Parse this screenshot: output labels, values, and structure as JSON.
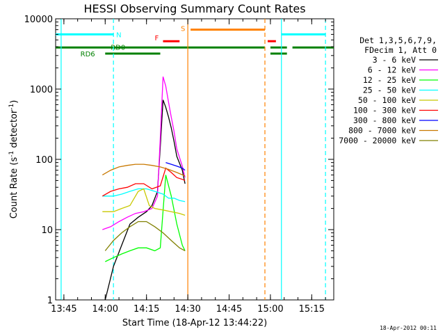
{
  "chart_data": {
    "type": "line",
    "title": "HESSI Observing Summary Count Rates",
    "xlabel": "Start Time (18-Apr-12 13:44:22)",
    "ylabel": "Count Rate (s",
    "ylabel_sup": "-1",
    "ylabel_mid": " detector",
    "ylabel_end": ")",
    "xlim": [
      "13:42",
      "15:23"
    ],
    "ylim": [
      1,
      10000
    ],
    "yscale": "log",
    "x_ticks": [
      "13:45",
      "14:00",
      "14:15",
      "14:30",
      "14:45",
      "15:00",
      "15:15"
    ],
    "y_ticks": [
      "1",
      "10",
      "100",
      "1000",
      "10000"
    ],
    "legend_header": [
      "Det 1,3,5,6,7,9,",
      "FDecim 1, Att 0"
    ],
    "legend_placement": "right",
    "timestamp": "18-Apr-2012 00:11",
    "series": [
      {
        "name": "3 - 6 keV",
        "color": "#000000",
        "x": [
          "14:00",
          "14:03",
          "14:06",
          "14:09",
          "14:12",
          "14:15",
          "14:17",
          "14:19",
          "14:20",
          "14:21",
          "14:22",
          "14:23",
          "14:24",
          "14:25",
          "14:26",
          "14:28",
          "14:29"
        ],
        "y": [
          1,
          3,
          6,
          12,
          15,
          18,
          22,
          35,
          150,
          700,
          550,
          400,
          280,
          180,
          110,
          70,
          45
        ]
      },
      {
        "name": "6 - 12 keV",
        "color": "#ff00ff",
        "x": [
          "13:59",
          "14:02",
          "14:05",
          "14:08",
          "14:11",
          "14:14",
          "14:17",
          "14:19",
          "14:20",
          "14:21",
          "14:22",
          "14:23",
          "14:24",
          "14:25",
          "14:26",
          "14:28",
          "14:29"
        ],
        "y": [
          10,
          11,
          13,
          15,
          17,
          18,
          20,
          30,
          200,
          1500,
          1100,
          650,
          400,
          250,
          140,
          80,
          55
        ]
      },
      {
        "name": "12 - 25 keV",
        "color": "#00ff00",
        "x": [
          "14:00",
          "14:03",
          "14:06",
          "14:09",
          "14:12",
          "14:15",
          "14:18",
          "14:20",
          "14:22",
          "14:24",
          "14:26",
          "14:28",
          "14:29"
        ],
        "y": [
          3.5,
          4,
          4.5,
          5,
          5.5,
          5.5,
          5,
          5.5,
          60,
          30,
          12,
          6,
          5
        ]
      },
      {
        "name": "25 - 50 keV",
        "color": "#00ffff",
        "x": [
          "13:59",
          "14:03",
          "14:06",
          "14:09",
          "14:12",
          "14:15",
          "14:18",
          "14:21",
          "14:23",
          "14:25",
          "14:27",
          "14:29"
        ],
        "y": [
          30,
          30,
          32,
          35,
          38,
          38,
          35,
          32,
          28,
          28,
          26,
          25
        ]
      },
      {
        "name": "50 - 100 keV",
        "color": "#c8c800",
        "x": [
          "13:59",
          "14:03",
          "14:06",
          "14:09",
          "14:12",
          "14:14",
          "14:16",
          "14:18",
          "14:21",
          "14:24",
          "14:27",
          "14:29"
        ],
        "y": [
          18,
          18,
          20,
          22,
          35,
          38,
          22,
          20,
          19,
          18,
          17,
          16
        ]
      },
      {
        "name": "100 - 300 keV",
        "color": "#ff0000",
        "x": [
          "13:59",
          "14:02",
          "14:05",
          "14:08",
          "14:11",
          "14:14",
          "14:17",
          "14:20",
          "14:22",
          "14:24",
          "14:26",
          "14:28",
          "14:29"
        ],
        "y": [
          30,
          35,
          38,
          40,
          45,
          45,
          38,
          42,
          75,
          65,
          55,
          52,
          50
        ]
      },
      {
        "name": "300 - 800 keV",
        "color": "#0000ff",
        "x": [
          "14:22",
          "14:24",
          "14:26",
          "14:28",
          "14:29"
        ],
        "y": [
          90,
          85,
          80,
          75,
          70
        ]
      },
      {
        "name": "800 - 7000 keV",
        "color": "#c87800",
        "x": [
          "13:59",
          "14:02",
          "14:05",
          "14:08",
          "14:11",
          "14:14",
          "14:17",
          "14:20",
          "14:23",
          "14:26",
          "14:29"
        ],
        "y": [
          60,
          70,
          78,
          82,
          85,
          85,
          82,
          78,
          72,
          65,
          58
        ]
      },
      {
        "name": "7000 - 20000 keV",
        "color": "#808000",
        "x": [
          "14:00",
          "14:03",
          "14:06",
          "14:09",
          "14:12",
          "14:15",
          "14:18",
          "14:21",
          "14:24",
          "14:27",
          "14:29"
        ],
        "y": [
          5,
          7,
          9,
          11,
          13,
          13,
          11,
          9,
          7,
          5.5,
          5
        ]
      }
    ],
    "bands": [
      {
        "label": "N",
        "color": "#00ffff",
        "y": 6000,
        "segments": [
          [
            "13:42",
            "14:03"
          ],
          [
            "15:04",
            "15:20"
          ]
        ]
      },
      {
        "label": "F",
        "color": "#ff0000",
        "y": 4800,
        "segments": [
          [
            "14:21",
            "14:27"
          ],
          [
            "14:59",
            "15:02"
          ]
        ]
      },
      {
        "label": "S",
        "color": "#ff8000",
        "y": 7000,
        "segments": [
          [
            "14:31",
            "14:58"
          ]
        ]
      },
      {
        "label": "RD0",
        "color": "#008000",
        "y": 3900,
        "segments": [
          [
            "13:42",
            "14:21"
          ],
          [
            "14:21",
            "14:58"
          ],
          [
            "15:00",
            "15:06"
          ],
          [
            "15:08",
            "15:23"
          ]
        ]
      },
      {
        "label": "RD6",
        "color": "#008000",
        "y": 3200,
        "segments": [
          [
            "14:00",
            "14:20"
          ],
          [
            "15:00",
            "15:06"
          ]
        ]
      }
    ],
    "vlines": [
      {
        "x": "13:44",
        "color": "#00ffff",
        "dash": false
      },
      {
        "x": "14:03",
        "color": "#00ffff",
        "dash": true
      },
      {
        "x": "14:30",
        "color": "#ff8000",
        "dash": false
      },
      {
        "x": "14:58",
        "color": "#ff8000",
        "dash": true
      },
      {
        "x": "15:04",
        "color": "#00ffff",
        "dash": false
      },
      {
        "x": "15:20",
        "color": "#00ffff",
        "dash": true
      }
    ]
  }
}
